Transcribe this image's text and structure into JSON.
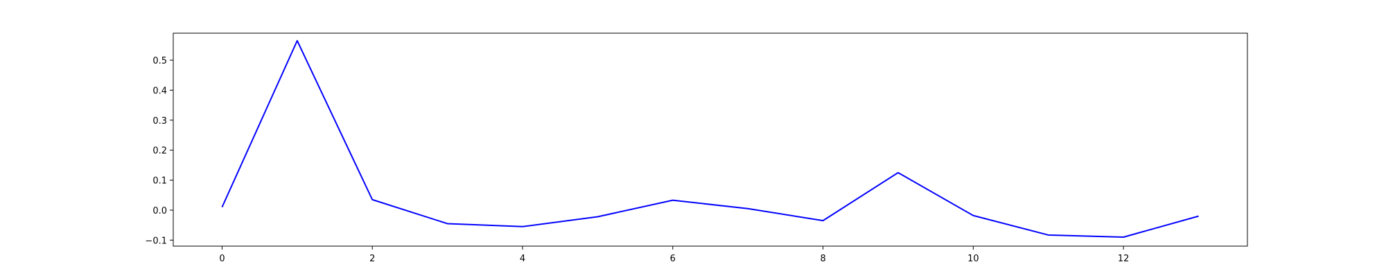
{
  "chart_data": {
    "type": "line",
    "title": "",
    "xlabel": "",
    "ylabel": "",
    "xlim": [
      -0.65,
      13.65
    ],
    "ylim": [
      -0.12,
      0.59
    ],
    "xticks": [
      0,
      2,
      4,
      6,
      8,
      10,
      12
    ],
    "xtick_labels": [
      "0",
      "2",
      "4",
      "6",
      "8",
      "10",
      "12"
    ],
    "yticks": [
      -0.1,
      0.0,
      0.1,
      0.2,
      0.3,
      0.4,
      0.5
    ],
    "ytick_labels": [
      "−0.1",
      "0.0",
      "0.1",
      "0.2",
      "0.3",
      "0.4",
      "0.5"
    ],
    "grid": false,
    "legend": "none",
    "series": [
      {
        "color": "#0000ff",
        "x": [
          0,
          1,
          2,
          3,
          4,
          5,
          6,
          7,
          8,
          9,
          10,
          11,
          12,
          13
        ],
        "y": [
          0.01,
          0.565,
          0.035,
          -0.045,
          -0.055,
          -0.022,
          0.033,
          0.005,
          -0.035,
          0.125,
          -0.018,
          -0.083,
          -0.09,
          -0.02
        ]
      }
    ]
  }
}
